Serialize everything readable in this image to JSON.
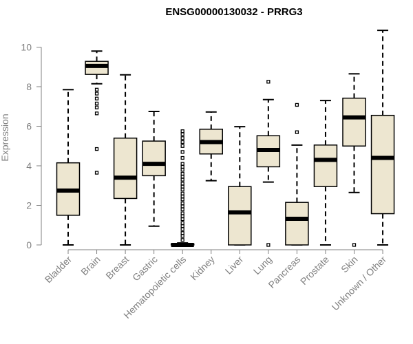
{
  "chart_data": {
    "type": "boxplot",
    "title": "ENSG00000130032 - PRRG3",
    "xlabel": "",
    "ylabel": "Expression",
    "ylim": [
      0,
      10.8
    ],
    "yticks": [
      0,
      2,
      4,
      6,
      8,
      10
    ],
    "box_fill": "#ede6d0",
    "line_color": "#000000",
    "axis_color": "#808080",
    "categories": [
      "Bladder",
      "Brain",
      "Breast",
      "Gastric",
      "Hematopoietic cells",
      "Kidney",
      "Liver",
      "Lung",
      "Pancreas",
      "Prostate",
      "Skin",
      "Unknown / Other"
    ],
    "boxes": [
      {
        "name": "Bladder",
        "whisker_low": 0,
        "q1": 1.5,
        "median": 2.75,
        "q3": 4.15,
        "whisker_high": 7.85,
        "outliers": []
      },
      {
        "name": "Brain",
        "whisker_low": 8.15,
        "q1": 8.62,
        "median": 9.05,
        "q3": 9.28,
        "whisker_high": 9.8,
        "outliers": [
          7.85,
          7.65,
          7.4,
          7.15,
          6.95,
          6.65,
          4.85,
          3.65
        ]
      },
      {
        "name": "Breast",
        "whisker_low": 0,
        "q1": 2.35,
        "median": 3.4,
        "q3": 5.4,
        "whisker_high": 8.6,
        "outliers": []
      },
      {
        "name": "Gastric",
        "whisker_low": 0.95,
        "q1": 3.5,
        "median": 4.1,
        "q3": 5.25,
        "whisker_high": 6.75,
        "outliers": []
      },
      {
        "name": "Hematopoietic cells",
        "whisker_low": 0,
        "q1": 0,
        "median": 0,
        "q3": 0.05,
        "whisker_high": 0.1,
        "outliers": [
          0.25,
          0.45,
          0.6,
          0.8,
          0.95,
          1.1,
          1.3,
          1.45,
          1.6,
          1.8,
          1.95,
          2.1,
          2.3,
          2.45,
          2.6,
          2.8,
          2.95,
          3.1,
          3.3,
          3.45,
          3.6,
          3.8,
          3.95,
          4.1,
          4.4,
          4.7,
          5.0,
          5.2,
          5.4,
          5.6,
          5.75
        ]
      },
      {
        "name": "Kidney",
        "whisker_low": 3.25,
        "q1": 4.6,
        "median": 5.2,
        "q3": 5.85,
        "whisker_high": 6.72,
        "outliers": []
      },
      {
        "name": "Liver",
        "whisker_low": 0,
        "q1": 0,
        "median": 1.65,
        "q3": 2.95,
        "whisker_high": 5.98,
        "outliers": []
      },
      {
        "name": "Lung",
        "whisker_low": 3.18,
        "q1": 3.95,
        "median": 4.8,
        "q3": 5.52,
        "whisker_high": 7.35,
        "outliers": [
          8.25,
          0.0
        ]
      },
      {
        "name": "Pancreas",
        "whisker_low": 0,
        "q1": 0,
        "median": 1.32,
        "q3": 2.15,
        "whisker_high": 5.05,
        "outliers": [
          7.08,
          5.7
        ]
      },
      {
        "name": "Prostate",
        "whisker_low": 0,
        "q1": 2.95,
        "median": 4.3,
        "q3": 5.05,
        "whisker_high": 7.3,
        "outliers": []
      },
      {
        "name": "Skin",
        "whisker_low": 2.65,
        "q1": 5.0,
        "median": 6.45,
        "q3": 7.42,
        "whisker_high": 8.65,
        "outliers": [
          0.0
        ]
      },
      {
        "name": "Unknown / Other",
        "whisker_low": 0,
        "q1": 1.58,
        "median": 4.4,
        "q3": 6.55,
        "whisker_high": 10.85,
        "outliers": []
      }
    ]
  }
}
